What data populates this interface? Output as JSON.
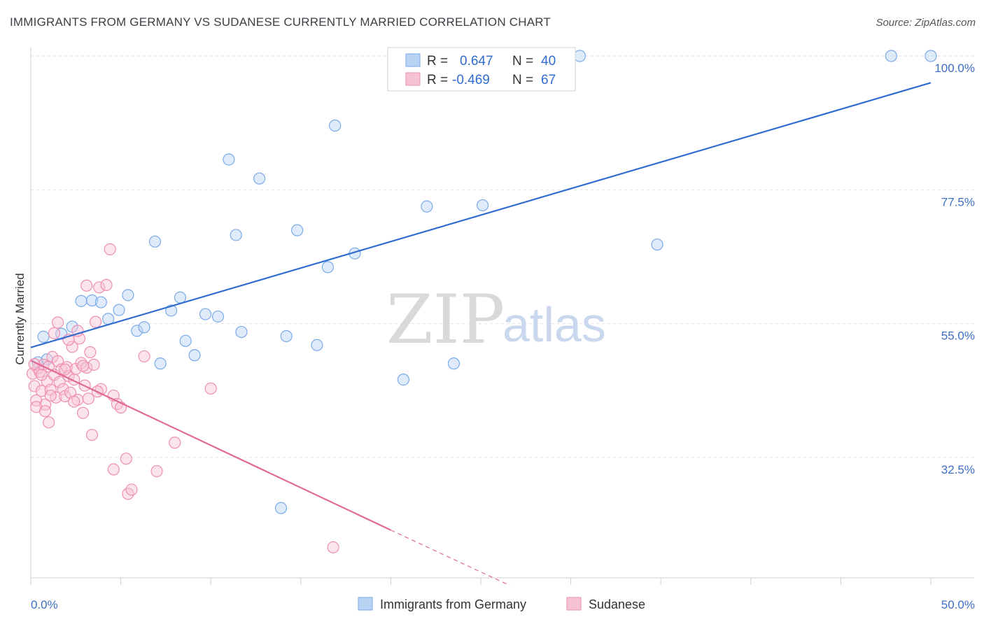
{
  "chart_data": {
    "type": "scatter",
    "title": "IMMIGRANTS FROM GERMANY VS SUDANESE CURRENTLY MARRIED CORRELATION CHART",
    "source": "Source: ZipAtlas.com",
    "ylabel": "Currently Married",
    "xlabel": "",
    "xlim": [
      0,
      50
    ],
    "ylim": [
      14,
      102
    ],
    "x_tick_labels": [
      "0.0%",
      "50.0%"
    ],
    "y_ticks": [
      {
        "value": 100,
        "label": "100.0%"
      },
      {
        "value": 77.5,
        "label": "77.5%"
      },
      {
        "value": 55,
        "label": "55.0%"
      },
      {
        "value": 32.5,
        "label": "32.5%"
      }
    ],
    "grid": true,
    "watermark": {
      "zip": "ZIP",
      "atlas": "atlas"
    },
    "legend": {
      "r_label": "R =",
      "n_label": "N =",
      "entries": [
        {
          "name": "Immigrants from Germany",
          "r": "0.647",
          "n": "40",
          "color": "#7aaae8",
          "fill": "#b9d3f3"
        },
        {
          "name": "Sudanese",
          "r": "-0.469",
          "n": "67",
          "color": "#ee8fb0",
          "fill": "#f7c3d4"
        }
      ]
    },
    "series": [
      {
        "name": "Immigrants from Germany",
        "color": "#7aaae8",
        "trend": {
          "x0": 0,
          "y0": 51.0,
          "x1": 50,
          "y1": 95.5,
          "color": "#2f6ccf"
        },
        "points": [
          [
            0.7,
            52.8
          ],
          [
            1.7,
            53.3
          ],
          [
            2.3,
            54.5
          ],
          [
            2.8,
            58.8
          ],
          [
            3.4,
            58.9
          ],
          [
            3.9,
            58.6
          ],
          [
            4.3,
            55.8
          ],
          [
            4.9,
            57.3
          ],
          [
            5.4,
            59.8
          ],
          [
            5.9,
            53.8
          ],
          [
            6.3,
            54.4
          ],
          [
            6.9,
            68.8
          ],
          [
            7.2,
            48.3
          ],
          [
            7.8,
            57.2
          ],
          [
            8.3,
            59.4
          ],
          [
            8.6,
            52.1
          ],
          [
            9.1,
            49.7
          ],
          [
            9.7,
            56.6
          ],
          [
            10.4,
            56.2
          ],
          [
            11.0,
            82.6
          ],
          [
            11.4,
            69.9
          ],
          [
            11.7,
            53.6
          ],
          [
            12.7,
            79.4
          ],
          [
            13.9,
            24.0
          ],
          [
            14.2,
            52.9
          ],
          [
            14.8,
            70.7
          ],
          [
            15.9,
            51.4
          ],
          [
            16.5,
            64.5
          ],
          [
            16.9,
            88.3
          ],
          [
            18.0,
            66.8
          ],
          [
            20.7,
            45.6
          ],
          [
            22.0,
            74.7
          ],
          [
            23.5,
            48.3
          ],
          [
            25.1,
            74.9
          ],
          [
            30.5,
            100.0
          ],
          [
            34.8,
            68.3
          ],
          [
            47.8,
            100.0
          ],
          [
            50.0,
            100.0
          ],
          [
            0.4,
            48.5
          ],
          [
            0.9,
            49.0
          ]
        ]
      },
      {
        "name": "Sudanese",
        "color": "#ee8fb0",
        "trend": {
          "x0": 0,
          "y0": 48.8,
          "x1": 20,
          "y1": 20.3,
          "x_dash_end": 26.6,
          "y_dash_end": 11.0,
          "color": "#e06a96"
        },
        "points": [
          [
            0.1,
            46.6
          ],
          [
            0.2,
            44.5
          ],
          [
            0.3,
            42.1
          ],
          [
            0.4,
            47.5
          ],
          [
            0.5,
            46.9
          ],
          [
            0.6,
            43.7
          ],
          [
            0.7,
            48.1
          ],
          [
            0.8,
            41.4
          ],
          [
            0.9,
            45.3
          ],
          [
            1.0,
            47.8
          ],
          [
            1.1,
            43.9
          ],
          [
            1.2,
            49.4
          ],
          [
            1.3,
            46.4
          ],
          [
            1.4,
            42.6
          ],
          [
            1.5,
            48.7
          ],
          [
            1.6,
            45.2
          ],
          [
            1.7,
            47.3
          ],
          [
            1.8,
            44.0
          ],
          [
            1.9,
            42.8
          ],
          [
            2.0,
            47.7
          ],
          [
            2.1,
            46.2
          ],
          [
            2.2,
            43.4
          ],
          [
            2.3,
            51.1
          ],
          [
            2.4,
            45.6
          ],
          [
            2.5,
            47.4
          ],
          [
            2.6,
            42.2
          ],
          [
            2.7,
            52.5
          ],
          [
            2.8,
            48.4
          ],
          [
            2.9,
            40.0
          ],
          [
            3.0,
            44.6
          ],
          [
            3.1,
            47.6
          ],
          [
            3.2,
            42.4
          ],
          [
            3.3,
            50.2
          ],
          [
            3.4,
            36.3
          ],
          [
            3.5,
            48.1
          ],
          [
            1.5,
            55.2
          ],
          [
            2.1,
            52.3
          ],
          [
            3.1,
            61.4
          ],
          [
            3.8,
            61.1
          ],
          [
            3.6,
            55.3
          ],
          [
            2.6,
            53.8
          ],
          [
            4.2,
            61.5
          ],
          [
            4.4,
            67.5
          ],
          [
            3.9,
            44.0
          ],
          [
            4.6,
            42.9
          ],
          [
            4.8,
            41.5
          ],
          [
            5.0,
            40.9
          ],
          [
            4.6,
            30.5
          ],
          [
            5.3,
            32.3
          ],
          [
            5.4,
            26.4
          ],
          [
            5.6,
            27.1
          ],
          [
            6.3,
            49.5
          ],
          [
            7.0,
            30.2
          ],
          [
            8.0,
            35.0
          ],
          [
            10.0,
            44.1
          ],
          [
            16.8,
            17.4
          ],
          [
            0.3,
            41.0
          ],
          [
            0.8,
            40.3
          ],
          [
            1.1,
            42.9
          ],
          [
            2.4,
            41.9
          ],
          [
            1.3,
            53.4
          ],
          [
            0.6,
            46.4
          ],
          [
            1.9,
            47.3
          ],
          [
            0.2,
            48.2
          ],
          [
            1.0,
            38.4
          ],
          [
            2.9,
            47.9
          ],
          [
            3.7,
            43.6
          ]
        ]
      }
    ]
  }
}
